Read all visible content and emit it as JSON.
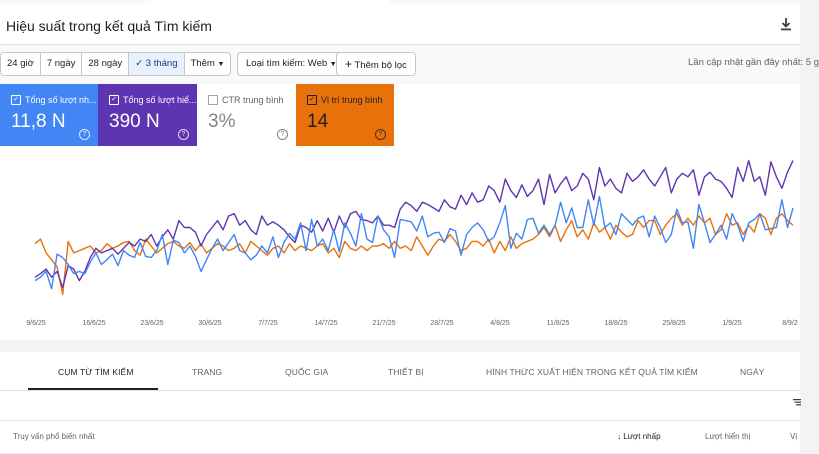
{
  "header": {
    "title": "Hiệu suất trong kết quả Tìm kiếm"
  },
  "date_ranges": [
    "24 giờ",
    "7 ngày",
    "28 ngày",
    "3 tháng",
    "Thêm"
  ],
  "search_type": "Loại tìm kiếm: Web",
  "add_filter": "Thêm bộ lọc",
  "last_updated": "Lần cập nhật gần đây nhất: 5 g",
  "metrics": [
    {
      "label": "Tổng số lượt nh...",
      "value": "11,8 N",
      "color": "#4285f4",
      "checked": true
    },
    {
      "label": "Tổng số lượt hiể...",
      "value": "390 N",
      "color": "#5e35b1",
      "checked": true
    },
    {
      "label": "CTR trung bình",
      "value": "3%",
      "color": "#ffffff",
      "checked": false
    },
    {
      "label": "Vị trí trung bình",
      "value": "14",
      "color": "#e8710a",
      "checked": true
    }
  ],
  "chart_data": {
    "type": "line",
    "x_tick_labels": [
      "9/6/25",
      "16/6/25",
      "23/6/25",
      "30/6/25",
      "7/7/25",
      "14/7/25",
      "21/7/25",
      "28/7/25",
      "4/8/25",
      "11/8/25",
      "18/8/25",
      "25/8/25",
      "1/9/25",
      "8/9/2"
    ],
    "grid": false,
    "axes_labels_visible": false,
    "series": [
      {
        "name": "Tổng số lượt nh...",
        "color": "#4285f4",
        "values": [
          22,
          25,
          30,
          15,
          45,
          42,
          36,
          28,
          30,
          28,
          38,
          46,
          36,
          40,
          45,
          35,
          48,
          44,
          42,
          55,
          43,
          42,
          48,
          62,
          36,
          57,
          55,
          46,
          52,
          43,
          30,
          40,
          50,
          58,
          48,
          55,
          62,
          48,
          46,
          40,
          44,
          52,
          46,
          60,
          42,
          55,
          63,
          58,
          72,
          48,
          75,
          52,
          58,
          48,
          66,
          47,
          72,
          63,
          52,
          80,
          58,
          55,
          78,
          66,
          60,
          42,
          75,
          74,
          73,
          65,
          78,
          60,
          63,
          64,
          55,
          67,
          65,
          44,
          62,
          68,
          72,
          66,
          56,
          60,
          72,
          87,
          50,
          63,
          58,
          75,
          76,
          63,
          70,
          62,
          70,
          90,
          72,
          85,
          68,
          68,
          92,
          70,
          95,
          68,
          72,
          62,
          80,
          75,
          70,
          76,
          78,
          60,
          78,
          68,
          55,
          62,
          84,
          72,
          73,
          50,
          88,
          72,
          55,
          62,
          70,
          58,
          80,
          70,
          56,
          72,
          75,
          80,
          66,
          67,
          68,
          92,
          68,
          85
        ]
      },
      {
        "name": "Tổng số lượt hiể...",
        "color": "#5e35b1",
        "values": [
          25,
          28,
          32,
          25,
          30,
          16,
          35,
          32,
          22,
          30,
          42,
          50,
          46,
          48,
          50,
          45,
          50,
          55,
          52,
          58,
          56,
          62,
          52,
          60,
          66,
          58,
          74,
          68,
          68,
          64,
          52,
          62,
          68,
          74,
          66,
          78,
          80,
          70,
          74,
          66,
          62,
          78,
          70,
          73,
          70,
          66,
          60,
          55,
          70,
          68,
          64,
          74,
          65,
          76,
          64,
          78,
          68,
          80,
          82,
          75,
          74,
          72,
          78,
          70,
          70,
          68,
          84,
          90,
          87,
          82,
          90,
          88,
          85,
          82,
          92,
          86,
          84,
          96,
          88,
          98,
          90,
          92,
          104,
          100,
          90,
          110,
          100,
          94,
          105,
          95,
          100,
          110,
          88,
          114,
          98,
          106,
          112,
          100,
          104,
          115,
          110,
          92,
          120,
          104,
          110,
          102,
          98,
          115,
          108,
          112,
          118,
          110,
          104,
          112,
          120,
          98,
          110,
          115,
          112,
          118,
          96,
          112,
          116,
          110,
          108,
          102,
          94,
          120,
          108,
          126,
          108,
          112,
          96,
          125,
          112,
          102,
          116,
          126
        ]
      },
      {
        "name": "Vị trí trung bình",
        "color": "#e8710a",
        "values": [
          54,
          58,
          46,
          40,
          34,
          10,
          56,
          46,
          48,
          50,
          52,
          46,
          48,
          54,
          50,
          52,
          55,
          56,
          48,
          44,
          58,
          52,
          46,
          50,
          54,
          56,
          52,
          50,
          55,
          48,
          54,
          46,
          50,
          54,
          52,
          48,
          50,
          54,
          46,
          56,
          52,
          48,
          44,
          50,
          52,
          46,
          54,
          48,
          52,
          50,
          48,
          52,
          54,
          46,
          50,
          42,
          56,
          50,
          48,
          52,
          48,
          52,
          52,
          54,
          50,
          56,
          50,
          52,
          48,
          60,
          52,
          44,
          52,
          58,
          56,
          62,
          56,
          48,
          50,
          56,
          56,
          52,
          58,
          46,
          56,
          48,
          60,
          50,
          54,
          56,
          58,
          62,
          68,
          60,
          70,
          56,
          66,
          74,
          60,
          66,
          58,
          72,
          64,
          68,
          58,
          70,
          64,
          60,
          62,
          74,
          68,
          74,
          74,
          62,
          70,
          76,
          80,
          70,
          76,
          70,
          78,
          72,
          76,
          62,
          66,
          80,
          70,
          72,
          62,
          70,
          64,
          80,
          76,
          62,
          76,
          80,
          74,
          70
        ]
      }
    ]
  },
  "tabs": [
    "CỤM TỪ TÌM KIẾM",
    "TRANG",
    "QUỐC GIA",
    "THIẾT BỊ",
    "HÌNH THỨC XUẤT HIỆN TRONG KẾT QUẢ TÌM KIẾM",
    "NGÀY"
  ],
  "columns": {
    "query": "Truy vấn phổ biến nhất",
    "clicks": "Lượt nhấp",
    "impressions": "Lượt hiển thị",
    "extra": "Vị"
  }
}
